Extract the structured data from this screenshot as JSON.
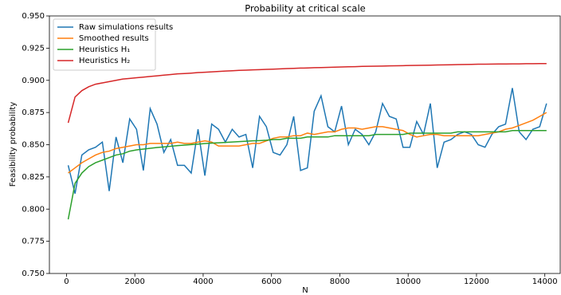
{
  "chart_data": {
    "type": "line",
    "title": "Probability at critical scale",
    "x_label": "N",
    "y_label": "Feasibility probability",
    "x": [
      50,
      250,
      450,
      650,
      850,
      1050,
      1250,
      1450,
      1650,
      1850,
      2050,
      2250,
      2450,
      2650,
      2850,
      3050,
      3250,
      3450,
      3650,
      3850,
      4050,
      4250,
      4450,
      4650,
      4850,
      5050,
      5250,
      5450,
      5650,
      5850,
      6050,
      6250,
      6450,
      6650,
      6850,
      7050,
      7250,
      7450,
      7650,
      7850,
      8050,
      8250,
      8450,
      8650,
      8850,
      9050,
      9250,
      9450,
      9650,
      9850,
      10050,
      10250,
      10450,
      10650,
      10850,
      11050,
      11250,
      11450,
      11650,
      11850,
      12050,
      12250,
      12450,
      12650,
      12850,
      13050,
      13250,
      13450,
      13650,
      13850,
      14050
    ],
    "series": [
      {
        "name": "Raw simulations results",
        "color": "#1f77b4",
        "values": [
          0.834,
          0.812,
          0.842,
          0.846,
          0.848,
          0.852,
          0.814,
          0.856,
          0.836,
          0.87,
          0.862,
          0.83,
          0.878,
          0.866,
          0.844,
          0.854,
          0.834,
          0.834,
          0.828,
          0.862,
          0.826,
          0.866,
          0.862,
          0.852,
          0.862,
          0.856,
          0.858,
          0.832,
          0.872,
          0.864,
          0.844,
          0.842,
          0.85,
          0.872,
          0.83,
          0.832,
          0.876,
          0.888,
          0.864,
          0.86,
          0.88,
          0.85,
          0.862,
          0.858,
          0.85,
          0.86,
          0.882,
          0.872,
          0.87,
          0.848,
          0.848,
          0.868,
          0.858,
          0.882,
          0.832,
          0.852,
          0.854,
          0.858,
          0.86,
          0.858,
          0.85,
          0.848,
          0.858,
          0.864,
          0.866,
          0.894,
          0.86,
          0.854,
          0.862,
          0.864,
          0.882
        ]
      },
      {
        "name": "Smoothed results",
        "color": "#ff7f0e",
        "values": [
          0.828,
          0.832,
          0.836,
          0.839,
          0.842,
          0.844,
          0.845,
          0.847,
          0.848,
          0.849,
          0.85,
          0.85,
          0.851,
          0.851,
          0.851,
          0.851,
          0.852,
          0.851,
          0.851,
          0.852,
          0.853,
          0.852,
          0.849,
          0.849,
          0.849,
          0.849,
          0.85,
          0.851,
          0.851,
          0.853,
          0.855,
          0.856,
          0.856,
          0.857,
          0.857,
          0.859,
          0.858,
          0.859,
          0.86,
          0.86,
          0.862,
          0.863,
          0.863,
          0.862,
          0.863,
          0.864,
          0.864,
          0.863,
          0.862,
          0.861,
          0.858,
          0.856,
          0.857,
          0.858,
          0.858,
          0.857,
          0.857,
          0.857,
          0.857,
          0.857,
          0.857,
          0.858,
          0.859,
          0.86,
          0.862,
          0.863,
          0.865,
          0.867,
          0.869,
          0.872,
          0.875
        ]
      },
      {
        "name": "Heuristics H₁",
        "color": "#2ca02c",
        "values": [
          0.792,
          0.82,
          0.828,
          0.833,
          0.836,
          0.838,
          0.84,
          0.842,
          0.843,
          0.845,
          0.846,
          0.8466,
          0.8472,
          0.8478,
          0.8483,
          0.8488,
          0.8493,
          0.8497,
          0.8501,
          0.8505,
          0.8509,
          0.8512,
          0.8515,
          0.8518,
          0.8521,
          0.8524,
          0.8527,
          0.853,
          0.8532,
          0.8535,
          0.854,
          0.854,
          0.855,
          0.855,
          0.855,
          0.856,
          0.856,
          0.856,
          0.856,
          0.857,
          0.857,
          0.857,
          0.857,
          0.857,
          0.857,
          0.858,
          0.858,
          0.858,
          0.858,
          0.858,
          0.859,
          0.859,
          0.859,
          0.859,
          0.859,
          0.859,
          0.859,
          0.86,
          0.86,
          0.86,
          0.86,
          0.86,
          0.86,
          0.86,
          0.86,
          0.861,
          0.861,
          0.861,
          0.861,
          0.861,
          0.861
        ]
      },
      {
        "name": "Heuristics H₂",
        "color": "#d62728",
        "values": [
          0.867,
          0.887,
          0.892,
          0.895,
          0.897,
          0.898,
          0.899,
          0.9,
          0.901,
          0.9015,
          0.902,
          0.9025,
          0.903,
          0.9035,
          0.904,
          0.9045,
          0.905,
          0.9053,
          0.9056,
          0.906,
          0.9063,
          0.9066,
          0.9069,
          0.9072,
          0.9074,
          0.9077,
          0.9079,
          0.9081,
          0.9083,
          0.9085,
          0.9087,
          0.9089,
          0.9091,
          0.9093,
          0.9095,
          0.9096,
          0.9098,
          0.9099,
          0.9101,
          0.9102,
          0.9104,
          0.9105,
          0.9106,
          0.9108,
          0.9109,
          0.911,
          0.9111,
          0.9112,
          0.9113,
          0.9114,
          0.9115,
          0.9116,
          0.9117,
          0.9118,
          0.9119,
          0.912,
          0.9121,
          0.9122,
          0.9123,
          0.9124,
          0.9125,
          0.9125,
          0.9126,
          0.9127,
          0.9127,
          0.9128,
          0.9128,
          0.9129,
          0.9129,
          0.913,
          0.913
        ]
      }
    ],
    "xlim": [
      -500,
      14450
    ],
    "ylim": [
      0.75,
      0.95
    ],
    "xticks": [
      0,
      2000,
      4000,
      6000,
      8000,
      10000,
      12000,
      14000
    ],
    "yticks": [
      {
        "value": 0.75,
        "label": "0.750"
      },
      0.775,
      {
        "value": 0.8,
        "label": "0.800"
      },
      0.825,
      {
        "value": 0.85,
        "label": "0.850"
      },
      0.875,
      {
        "value": 0.9,
        "label": "0.900"
      },
      0.925,
      {
        "value": 0.95,
        "label": "0.950"
      }
    ],
    "legend": "upper left",
    "grid": false
  }
}
